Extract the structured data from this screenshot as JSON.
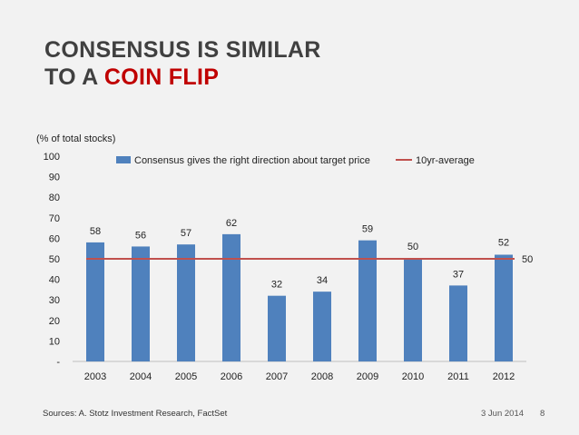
{
  "slide": {
    "title_line1": "CONSENSUS IS SIMILAR",
    "title_line2_prefix": "TO A ",
    "title_line2_accent": "COIN FLIP",
    "accent_color": "#c00000",
    "source": "Sources: A. Stotz Investment Research, FactSet",
    "date": "3 Jun 2014",
    "page_number": "8"
  },
  "chart_data": {
    "type": "bar",
    "ylabel": "(% of total stocks)",
    "categories": [
      "2003",
      "2004",
      "2005",
      "2006",
      "2007",
      "2008",
      "2009",
      "2010",
      "2011",
      "2012"
    ],
    "series": [
      {
        "name": "Consensus gives the right direction about target price",
        "type": "bar",
        "color": "#4f81bd",
        "values": [
          58,
          56,
          57,
          62,
          32,
          34,
          59,
          50,
          37,
          52
        ],
        "labels": [
          "58",
          "56",
          "57",
          "62",
          "32",
          "34",
          "59",
          "50",
          "37",
          "52"
        ]
      },
      {
        "name": "10yr-average",
        "type": "line",
        "color": "#c0504d",
        "value": 50,
        "label": "50"
      }
    ],
    "ylim": [
      0,
      100
    ],
    "yticks": [
      0,
      10,
      20,
      30,
      40,
      50,
      60,
      70,
      80,
      90,
      100
    ],
    "ytick_labels": [
      "-",
      "10",
      "20",
      "30",
      "40",
      "50",
      "60",
      "70",
      "80",
      "90",
      "100"
    ],
    "grid": false,
    "legend_position": "top"
  }
}
